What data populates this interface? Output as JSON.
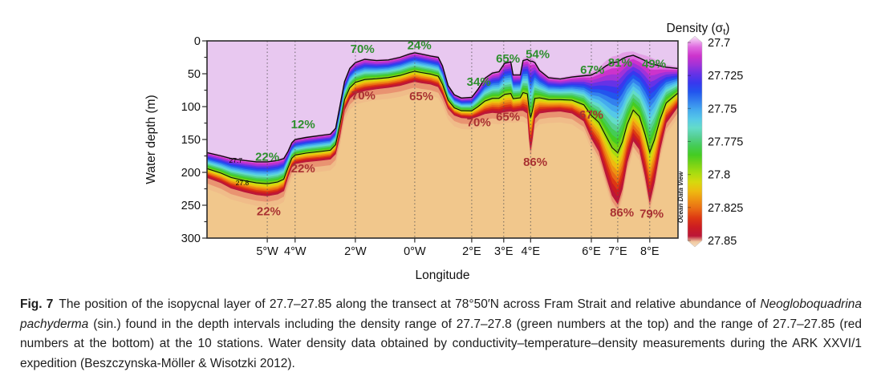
{
  "figure": {
    "caption_segments": [
      {
        "text": "Fig. 7",
        "style": "bold"
      },
      {
        "text": "The position of the isopycnal layer of 27.7–27.85 along the transect at 78°50′N across Fram Strait and relative abundance of ",
        "style": "normal"
      },
      {
        "text": "Neogloboquadrina pachyderma",
        "style": "italic"
      },
      {
        "text": " (sin.) found in the depth intervals including the density range of 27.7–27.8 (green numbers at the top) and the range of 27.7–27.85 (red numbers at the bottom) at the 10 stations. Water density data obtained by conductivity–temperature–density measurements during the ARK XXVI/1 expedition (Beszczynska-Möller & Wisotzki 2012).",
        "style": "normal"
      }
    ]
  },
  "chart_data": {
    "type": "area",
    "title": "",
    "xlabel": "Longitude",
    "ylabel": "Water depth (m)",
    "ylim": [
      0,
      300
    ],
    "y_ticks": [
      0,
      50,
      100,
      150,
      200,
      250,
      300
    ],
    "y_minor_step": 25,
    "grid": "vertical-dotted-at-stations",
    "stations": [
      {
        "label": "5°W",
        "x": 0.128
      },
      {
        "label": "4°W",
        "x": 0.187
      },
      {
        "label": "2°W",
        "x": 0.315
      },
      {
        "label": "0°W",
        "x": 0.441
      },
      {
        "label": "2°E",
        "x": 0.562
      },
      {
        "label": "3°E",
        "x": 0.63
      },
      {
        "label": "4°E",
        "x": 0.687
      },
      {
        "label": "6°E",
        "x": 0.816
      },
      {
        "label": "7°E",
        "x": 0.872
      },
      {
        "label": "8°E",
        "x": 0.94
      }
    ],
    "band_profile": [
      [
        0.0,
        170,
        208
      ],
      [
        0.03,
        175,
        216
      ],
      [
        0.051,
        179,
        224
      ],
      [
        0.08,
        182,
        230
      ],
      [
        0.105,
        184,
        234
      ],
      [
        0.128,
        184,
        236
      ],
      [
        0.15,
        182,
        233
      ],
      [
        0.163,
        179,
        228
      ],
      [
        0.172,
        168,
        207
      ],
      [
        0.18,
        155,
        192
      ],
      [
        0.187,
        150,
        187
      ],
      [
        0.21,
        147,
        184
      ],
      [
        0.24,
        144,
        182
      ],
      [
        0.262,
        142,
        180
      ],
      [
        0.273,
        133,
        172
      ],
      [
        0.282,
        100,
        145
      ],
      [
        0.292,
        62,
        105
      ],
      [
        0.303,
        42,
        88
      ],
      [
        0.315,
        33,
        80
      ],
      [
        0.335,
        28,
        76
      ],
      [
        0.36,
        30,
        73
      ],
      [
        0.385,
        29,
        71
      ],
      [
        0.41,
        25,
        68
      ],
      [
        0.43,
        20,
        64
      ],
      [
        0.441,
        18,
        62
      ],
      [
        0.455,
        20,
        64
      ],
      [
        0.475,
        23,
        66
      ],
      [
        0.491,
        25,
        70
      ],
      [
        0.5,
        38,
        82
      ],
      [
        0.512,
        68,
        103
      ],
      [
        0.525,
        82,
        113
      ],
      [
        0.54,
        87,
        117
      ],
      [
        0.562,
        86,
        118
      ],
      [
        0.575,
        74,
        115
      ],
      [
        0.59,
        57,
        111
      ],
      [
        0.606,
        49,
        109
      ],
      [
        0.62,
        47,
        110
      ],
      [
        0.632,
        34,
        108
      ],
      [
        0.645,
        32,
        107
      ],
      [
        0.65,
        52,
        108
      ],
      [
        0.665,
        52,
        106
      ],
      [
        0.671,
        30,
        106
      ],
      [
        0.68,
        28,
        110
      ],
      [
        0.684,
        30,
        148
      ],
      [
        0.687,
        31,
        166
      ],
      [
        0.691,
        31,
        148
      ],
      [
        0.696,
        33,
        118
      ],
      [
        0.706,
        45,
        110
      ],
      [
        0.725,
        56,
        108
      ],
      [
        0.75,
        58,
        107
      ],
      [
        0.775,
        55,
        110
      ],
      [
        0.8,
        53,
        122
      ],
      [
        0.816,
        52,
        148
      ],
      [
        0.832,
        46,
        168
      ],
      [
        0.847,
        38,
        205
      ],
      [
        0.86,
        33,
        235
      ],
      [
        0.872,
        32,
        248
      ],
      [
        0.882,
        27,
        225
      ],
      [
        0.892,
        24,
        185
      ],
      [
        0.905,
        22,
        152
      ],
      [
        0.918,
        26,
        165
      ],
      [
        0.93,
        30,
        205
      ],
      [
        0.94,
        34,
        246
      ],
      [
        0.95,
        36,
        215
      ],
      [
        0.962,
        38,
        165
      ],
      [
        0.975,
        40,
        125
      ],
      [
        1.0,
        42,
        100
      ]
    ],
    "band_density_range": [
      27.7,
      27.85
    ],
    "contour_27_8_fraction": 0.64,
    "contour_labels": [
      {
        "text": "27.7",
        "x": 0.061,
        "depth": 182
      },
      {
        "text": "27.8",
        "x": 0.075,
        "depth": 216
      }
    ],
    "green_labels": [
      {
        "value": "22%",
        "x": 0.128,
        "depth": 176
      },
      {
        "value": "12%",
        "x": 0.204,
        "depth": 127
      },
      {
        "value": "70%",
        "x": 0.33,
        "depth": 12
      },
      {
        "value": "24%",
        "x": 0.451,
        "depth": 7
      },
      {
        "value": "34%",
        "x": 0.577,
        "depth": 62
      },
      {
        "value": "65%",
        "x": 0.639,
        "depth": 27
      },
      {
        "value": "54%",
        "x": 0.702,
        "depth": 20
      },
      {
        "value": "67%",
        "x": 0.818,
        "depth": 44
      },
      {
        "value": "81%",
        "x": 0.877,
        "depth": 33
      },
      {
        "value": "49%",
        "x": 0.949,
        "depth": 35
      }
    ],
    "red_labels": [
      {
        "value": "22%",
        "x": 0.131,
        "depth": 259
      },
      {
        "value": "22%",
        "x": 0.204,
        "depth": 194
      },
      {
        "value": "70%",
        "x": 0.332,
        "depth": 83
      },
      {
        "value": "65%",
        "x": 0.455,
        "depth": 84
      },
      {
        "value": "70%",
        "x": 0.577,
        "depth": 124
      },
      {
        "value": "65%",
        "x": 0.639,
        "depth": 115
      },
      {
        "value": "86%",
        "x": 0.697,
        "depth": 184
      },
      {
        "value": "67%",
        "x": 0.816,
        "depth": 112
      },
      {
        "value": "86%",
        "x": 0.881,
        "depth": 261
      },
      {
        "value": "79%",
        "x": 0.944,
        "depth": 263
      }
    ],
    "colorbar": {
      "title_prefix": "Density (σ",
      "title_sub": "t",
      "title_suffix": ")",
      "ticks": [
        "27.7",
        "27.725",
        "27.75",
        "27.775",
        "27.8",
        "27.825",
        "27.85"
      ],
      "credit": "Ocean Data View"
    },
    "colormap": [
      "#e06ae0",
      "#cc33cc",
      "#a032d8",
      "#6632e6",
      "#3838ee",
      "#2255ee",
      "#3380ee",
      "#44aaee",
      "#55c8e8",
      "#63dcc8",
      "#55cf92",
      "#44cc55",
      "#44cc22",
      "#77d316",
      "#a8dc10",
      "#d6d90e",
      "#eebb10",
      "#ee9212",
      "#e96a14",
      "#dd3813",
      "#cc1c22",
      "#bb1638"
    ],
    "colors": {
      "above_layer": "#e8c8f0",
      "below_layer": "#f1c78c",
      "frame": "#2b2b2b",
      "grid": "#555555",
      "green_label": "#2e8f2e",
      "red_label": "#a93232",
      "contour": "#0a0a0a",
      "text": "#111111"
    }
  }
}
